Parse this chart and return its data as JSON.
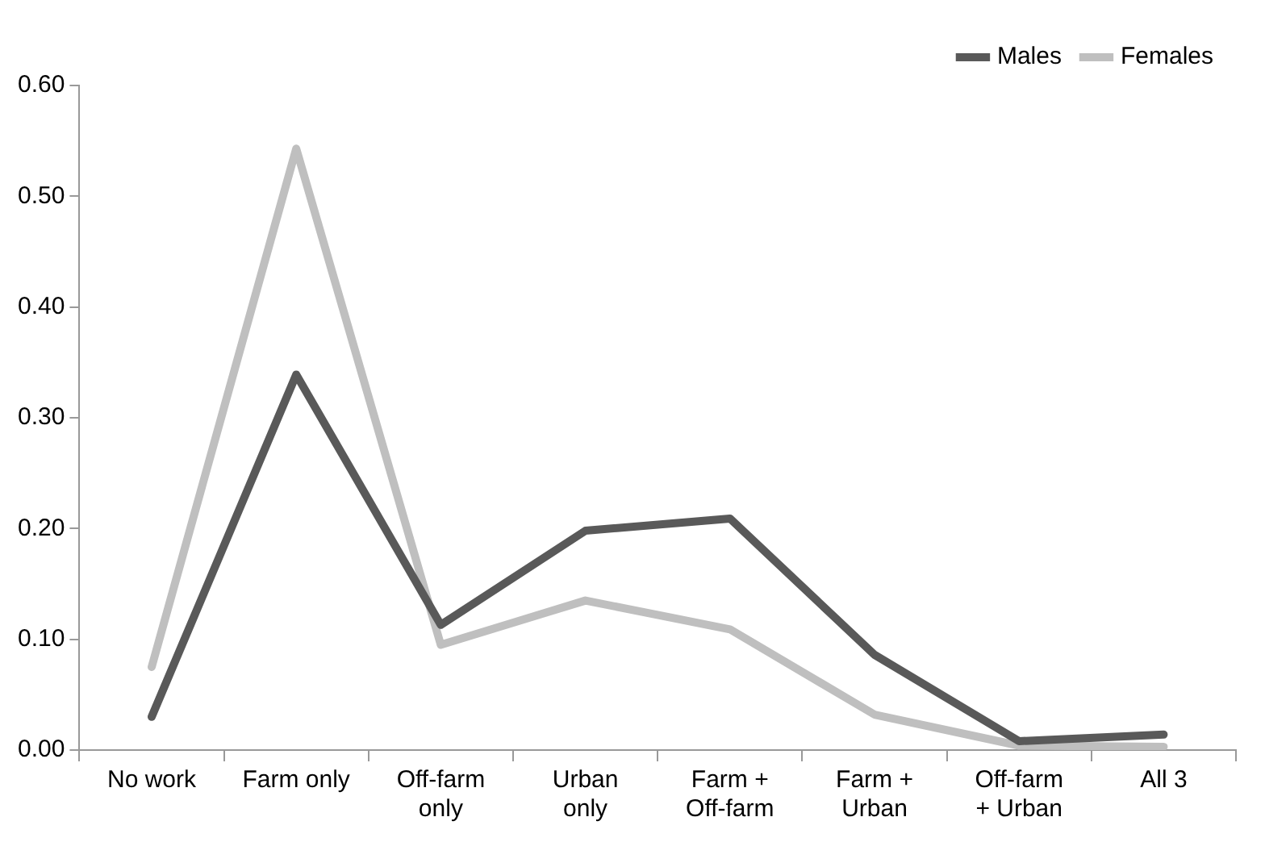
{
  "chart_data": {
    "type": "line",
    "categories": [
      "No work",
      "Farm only",
      "Off-farm\nonly",
      "Urban\nonly",
      "Farm +\nOff-farm",
      "Farm +\nUrban",
      "Off-farm\n+ Urban",
      "All 3"
    ],
    "series": [
      {
        "name": "Males",
        "color": "#595959",
        "values": [
          0.03,
          0.339,
          0.113,
          0.198,
          0.209,
          0.086,
          0.008,
          0.014
        ]
      },
      {
        "name": "Females",
        "color": "#bfbfbf",
        "values": [
          0.075,
          0.543,
          0.095,
          0.135,
          0.109,
          0.032,
          0.004,
          0.003
        ]
      }
    ],
    "ylim": [
      0,
      0.6
    ],
    "yticks": [
      {
        "value": 0,
        "label": "0.00"
      },
      {
        "value": 0.1,
        "label": "0.10"
      },
      {
        "value": 0.2,
        "label": "0.20"
      },
      {
        "value": 0.3,
        "label": "0.30"
      },
      {
        "value": 0.4,
        "label": "0.40"
      },
      {
        "value": 0.5,
        "label": "0.50"
      },
      {
        "value": 0.6,
        "label": "0.60"
      }
    ],
    "grid": false,
    "legend": "top right",
    "marker": "none",
    "line_style": "solid"
  }
}
